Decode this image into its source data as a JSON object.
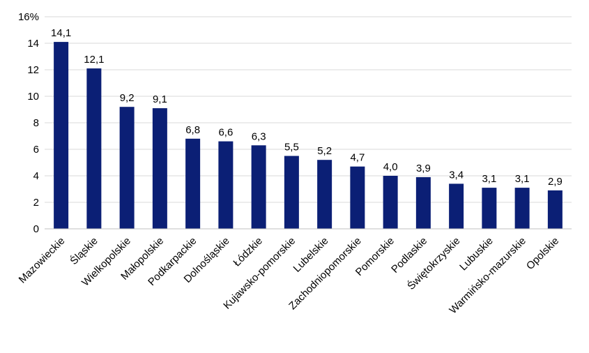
{
  "chart_data": {
    "type": "bar",
    "categories": [
      "Mazowieckie",
      "Śląskie",
      "Wielkopolskie",
      "Małopolskie",
      "Podkarpackie",
      "Dolnośląskie",
      "Łódzkie",
      "Kujawsko-pomorskie",
      "Lubelskie",
      "Zachodniopomorskie",
      "Pomorskie",
      "Podlaskie",
      "Świętokrzyskie",
      "Lubuskie",
      "Warmińsko-mazurskie",
      "Opolskie"
    ],
    "values": [
      14.1,
      12.1,
      9.2,
      9.1,
      6.8,
      6.6,
      6.3,
      5.5,
      5.2,
      4.7,
      4.0,
      3.9,
      3.4,
      3.1,
      3.1,
      2.9
    ],
    "value_labels": [
      "14,1",
      "12,1",
      "9,2",
      "9,1",
      "6,8",
      "6,6",
      "6,3",
      "5,5",
      "5,2",
      "4,7",
      "4,0",
      "3,9",
      "3,4",
      "3,1",
      "3,1",
      "2,9"
    ],
    "y_ticks": [
      0,
      2,
      4,
      6,
      8,
      10,
      12,
      14,
      16
    ],
    "y_tick_labels": [
      "0",
      "2",
      "4",
      "6",
      "8",
      "10",
      "12",
      "14",
      "16%"
    ],
    "ylim": [
      0,
      16
    ],
    "grid": true,
    "legend": "none",
    "bar_color": "#0b1f75",
    "title": "",
    "xlabel": "",
    "ylabel": ""
  }
}
